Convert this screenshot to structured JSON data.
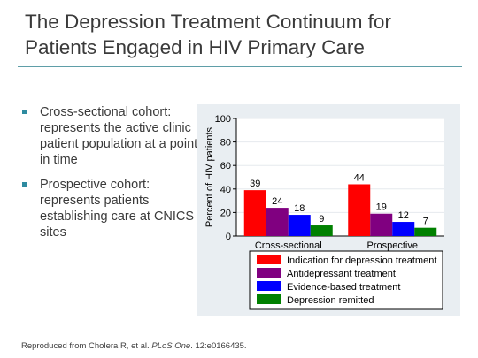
{
  "slide": {
    "title": "The Depression Treatment Continuum for Patients Engaged in HIV Primary Care",
    "bullets": [
      "Cross-sectional cohort: represents the active clinic patient population at a point in time",
      "Prospective cohort: represents patients establishing care at CNICS sites"
    ],
    "footnote": {
      "prefix": "Reproduced from Cholera R, et al. ",
      "journal": "PLoS One",
      "suffix": ". 12:e0166435."
    }
  },
  "chart_data": {
    "type": "bar",
    "title": "",
    "xlabel": "",
    "ylabel": "Percent of HIV patients",
    "ylim": [
      0,
      100
    ],
    "yticks": [
      0,
      20,
      40,
      60,
      80,
      100
    ],
    "grid": true,
    "legend_position": "bottom",
    "categories": [
      "Cross-sectional",
      "Prospective"
    ],
    "series": [
      {
        "name": "Indication for depression treatment",
        "color": "#ff0000",
        "values": [
          39,
          44
        ]
      },
      {
        "name": "Antidepressant treatment",
        "color": "#800080",
        "values": [
          24,
          19
        ]
      },
      {
        "name": "Evidence-based treatment",
        "color": "#0000ff",
        "values": [
          18,
          12
        ]
      },
      {
        "name": "Depression remitted",
        "color": "#008000",
        "values": [
          9,
          7
        ]
      }
    ]
  }
}
